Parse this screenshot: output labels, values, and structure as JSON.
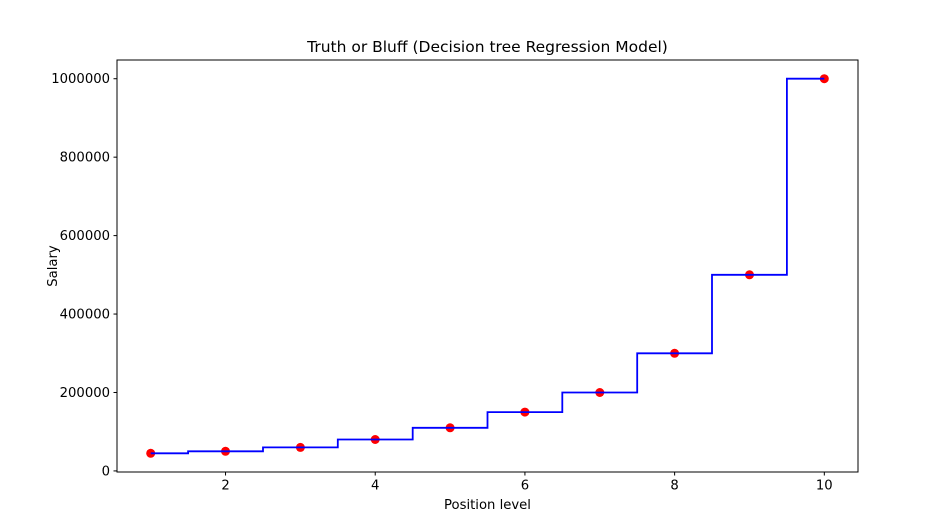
{
  "figure": {
    "background": "#ffffff",
    "frame_color": "#000000"
  },
  "chart_data": {
    "type": "line",
    "title": "Truth or Bluff (Decision tree Regression Model)",
    "xlabel": "Position level",
    "ylabel": "Salary",
    "xlim": [
      0.55,
      10.45
    ],
    "ylim": [
      -2750,
      1047750
    ],
    "x_ticks": [
      2,
      4,
      6,
      8,
      10
    ],
    "y_ticks": [
      0,
      200000,
      400000,
      600000,
      800000,
      1000000
    ],
    "grid": false,
    "legend": "none",
    "series": [
      {
        "name": "actual-salary-points",
        "type": "scatter",
        "color": "#ff0000",
        "marker_radius": 4.5,
        "x": [
          1,
          2,
          3,
          4,
          5,
          6,
          7,
          8,
          9,
          10
        ],
        "y": [
          45000,
          50000,
          60000,
          80000,
          110000,
          150000,
          200000,
          300000,
          500000,
          1000000
        ]
      },
      {
        "name": "decision-tree-prediction",
        "type": "step",
        "color": "#0000ff",
        "line_width": 1.8,
        "x_start": 1,
        "x_end": 10,
        "step_thresholds": [
          1.5,
          2.5,
          3.5,
          4.5,
          5.5,
          6.5,
          7.5,
          8.5,
          9.5
        ],
        "step_values": [
          45000,
          50000,
          60000,
          80000,
          110000,
          150000,
          200000,
          300000,
          500000,
          1000000
        ]
      }
    ]
  }
}
